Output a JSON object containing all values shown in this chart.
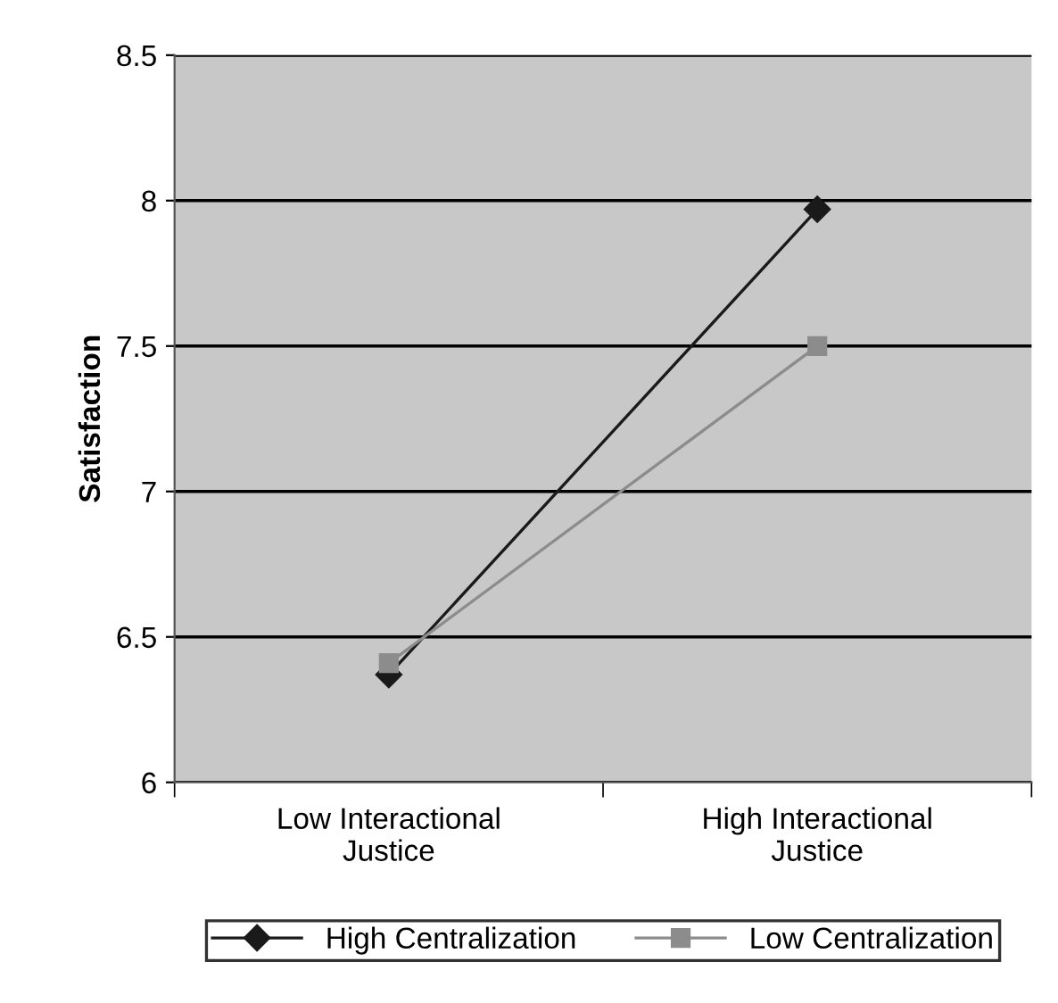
{
  "chart_data": {
    "type": "line",
    "ylabel": "Satisfaction",
    "categories": [
      "Low Interactional\nJustice",
      "High Interactional\nJustice"
    ],
    "series": [
      {
        "name": "High Centralization",
        "color": "#1a1a1a",
        "values": [
          6.37,
          7.97
        ],
        "marker": "diamond"
      },
      {
        "name": "Low Centralization",
        "color": "#8c8c8c",
        "values": [
          6.41,
          7.5
        ],
        "marker": "square"
      }
    ],
    "ylim": [
      6,
      8.5
    ],
    "yticks": [
      6,
      6.5,
      7,
      7.5,
      8,
      8.5
    ],
    "grid": "y",
    "legend": "bottom"
  }
}
